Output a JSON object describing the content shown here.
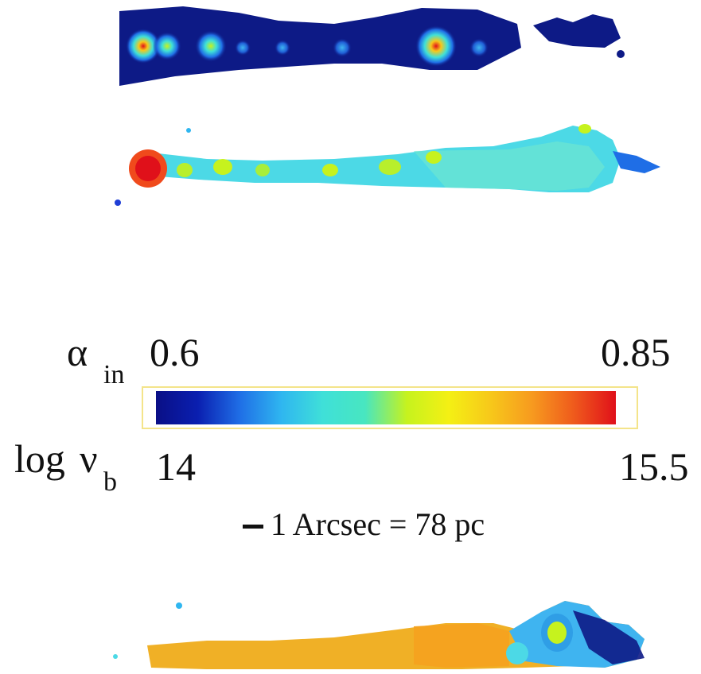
{
  "colorbar": {
    "alpha_symbol": "α",
    "alpha_subscript": "in",
    "alpha_min": "0.6",
    "alpha_max": "0.85",
    "nu_prefix": "log",
    "nu_symbol": "ν",
    "nu_subscript": "b",
    "nu_min": "14",
    "nu_max": "15.5",
    "colors": [
      "#0a0f86",
      "#0a1fb0",
      "#1f6ee6",
      "#2fb6f0",
      "#3fe0d8",
      "#48e6c0",
      "#c6f21e",
      "#f4f014",
      "#f7c81a",
      "#f79a1f",
      "#ef5a1c",
      "#e0101a"
    ]
  },
  "scale_bar": {
    "text": "1 Arcsec = 78 pc"
  },
  "panels": [
    {
      "name": "intensity-panel",
      "background": "#0d1a86"
    },
    {
      "name": "alpha-map-panel",
      "background": "#4cd9e6"
    },
    {
      "name": "break-frequency-panel",
      "background": "#f0b026"
    }
  ]
}
